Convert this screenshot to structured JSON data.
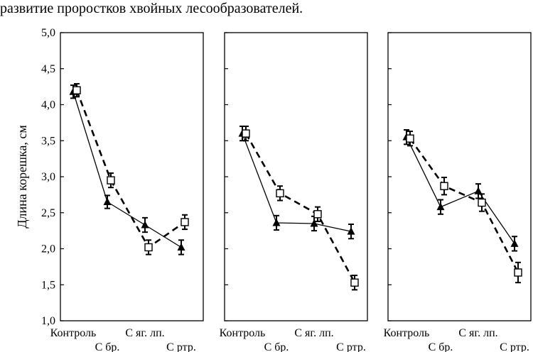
{
  "caption_fragment": "развитие проростков хвойных лесообразователей.",
  "chart_data": {
    "type": "line",
    "ylabel": "Длина корешка, см",
    "ylim": [
      1.0,
      5.0
    ],
    "yticks": [
      "1,0",
      "1,5",
      "2,0",
      "2,5",
      "3,0",
      "3,5",
      "4,0",
      "4,5",
      "5,0"
    ],
    "categories": [
      "Контроль",
      "С бр.",
      "С яг. лп.",
      "С ртр."
    ],
    "panels": [
      {
        "series": [
          {
            "name": "solid-triangle",
            "style": "solid",
            "marker": "triangle",
            "values": [
              4.18,
              2.65,
              2.33,
              2.02
            ],
            "err": [
              0.09,
              0.09,
              0.1,
              0.1
            ]
          },
          {
            "name": "dashed-square",
            "style": "dashed",
            "marker": "square",
            "values": [
              4.2,
              2.95,
              2.02,
              2.37
            ],
            "err": [
              0.09,
              0.1,
              0.1,
              0.1
            ]
          }
        ]
      },
      {
        "series": [
          {
            "name": "solid-triangle",
            "style": "solid",
            "marker": "triangle",
            "values": [
              3.6,
              2.36,
              2.35,
              2.24
            ],
            "err": [
              0.1,
              0.1,
              0.1,
              0.1
            ]
          },
          {
            "name": "dashed-square",
            "style": "dashed",
            "marker": "square",
            "values": [
              3.6,
              2.77,
              2.48,
              1.53
            ],
            "err": [
              0.1,
              0.1,
              0.1,
              0.1
            ]
          }
        ]
      },
      {
        "series": [
          {
            "name": "solid-triangle",
            "style": "solid",
            "marker": "triangle",
            "values": [
              3.55,
              2.58,
              2.8,
              2.07
            ],
            "err": [
              0.1,
              0.1,
              0.1,
              0.1
            ]
          },
          {
            "name": "dashed-square",
            "style": "dashed",
            "marker": "square",
            "values": [
              3.53,
              2.87,
              2.64,
              1.67
            ],
            "err": [
              0.1,
              0.12,
              0.12,
              0.14
            ]
          }
        ]
      }
    ]
  }
}
